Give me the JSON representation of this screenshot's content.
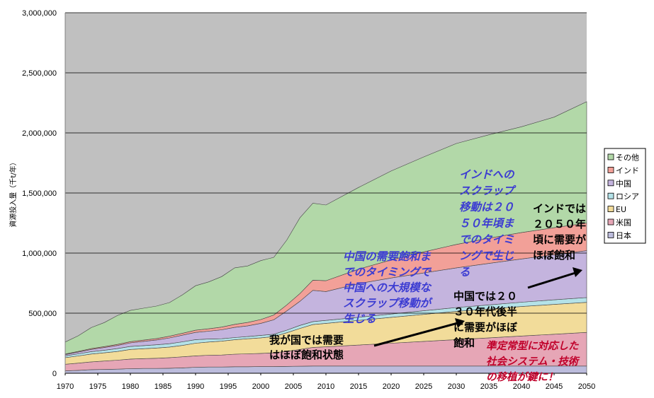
{
  "chart_data": {
    "type": "area",
    "stacked": true,
    "ylabel": "資源投入量（千t/年）",
    "ylim": [
      0,
      3000000
    ],
    "yticks": [
      "0",
      "500,000",
      "1,000,000",
      "1,500,000",
      "2,000,000",
      "2,500,000",
      "3,000,000"
    ],
    "xticks": [
      "1970",
      "1975",
      "1980",
      "1985",
      "1990",
      "1995",
      "2000",
      "2005",
      "2010",
      "2015",
      "2020",
      "2025",
      "2030",
      "2035",
      "2040",
      "2045",
      "2050"
    ],
    "grid": true,
    "legend_position": "right",
    "x": [
      1970,
      1972,
      1974,
      1976,
      1978,
      1980,
      1982,
      1984,
      1986,
      1988,
      1990,
      1992,
      1994,
      1996,
      1998,
      2000,
      2002,
      2004,
      2006,
      2008,
      2010,
      2015,
      2020,
      2025,
      2030,
      2035,
      2040,
      2045,
      2050
    ],
    "series": [
      {
        "name": "日本",
        "color": "#bcbcdc",
        "values": [
          20000,
          24000,
          30000,
          32000,
          34000,
          38000,
          40000,
          40000,
          42000,
          45000,
          50000,
          52000,
          52000,
          54000,
          54000,
          55000,
          55000,
          57000,
          58000,
          60000,
          60000,
          60000,
          60000,
          60000,
          60000,
          60000,
          60000,
          60000,
          60000
        ]
      },
      {
        "name": "米国",
        "color": "#e6a6b6",
        "values": [
          55000,
          60000,
          65000,
          70000,
          75000,
          80000,
          82000,
          85000,
          88000,
          92000,
          95000,
          98000,
          100000,
          105000,
          108000,
          110000,
          115000,
          125000,
          140000,
          155000,
          160000,
          175000,
          190000,
          205000,
          220000,
          235000,
          250000,
          265000,
          280000
        ]
      },
      {
        "name": "EU",
        "color": "#f2dc9a",
        "values": [
          55000,
          60000,
          65000,
          68000,
          72000,
          80000,
          82000,
          85000,
          88000,
          95000,
          105000,
          110000,
          115000,
          120000,
          125000,
          130000,
          135000,
          155000,
          175000,
          190000,
          195000,
          205000,
          215000,
          225000,
          235000,
          240000,
          245000,
          248000,
          250000
        ]
      },
      {
        "name": "ロシア",
        "color": "#b4e2e8",
        "values": [
          15000,
          18000,
          20000,
          22000,
          24000,
          25000,
          26000,
          27000,
          28000,
          30000,
          30000,
          25000,
          20000,
          18000,
          18000,
          20000,
          20000,
          22000,
          25000,
          25000,
          25000,
          26000,
          28000,
          30000,
          32000,
          34000,
          36000,
          38000,
          40000
        ]
      },
      {
        "name": "中国",
        "color": "#c4b4de",
        "values": [
          10000,
          14000,
          18000,
          22000,
          26000,
          30000,
          35000,
          40000,
          48000,
          55000,
          60000,
          65000,
          75000,
          85000,
          90000,
          100000,
          120000,
          160000,
          200000,
          260000,
          240000,
          280000,
          300000,
          315000,
          330000,
          345000,
          360000,
          375000,
          390000
        ]
      },
      {
        "name": "インド",
        "color": "#f2a098",
        "values": [
          5000,
          6000,
          7000,
          8000,
          9000,
          10000,
          11000,
          12000,
          14000,
          16000,
          18000,
          20000,
          22000,
          25000,
          28000,
          32000,
          40000,
          50000,
          65000,
          85000,
          90000,
          120000,
          150000,
          175000,
          195000,
          210000,
          220000,
          225000,
          230000
        ]
      },
      {
        "name": "その他",
        "color": "#b2d8a8",
        "values": [
          100000,
          130000,
          175000,
          200000,
          240000,
          260000,
          265000,
          270000,
          280000,
          320000,
          370000,
          390000,
          420000,
          470000,
          470000,
          490000,
          480000,
          540000,
          630000,
          640000,
          630000,
          680000,
          740000,
          790000,
          840000,
          860000,
          880000,
          920000,
          1010000
        ]
      }
    ]
  },
  "annotations": {
    "india_shift": [
      "インドへの",
      "スクラップ",
      "移動は２０",
      "５０年頃ま",
      "でのタイミ",
      "ングで生じ",
      "る"
    ],
    "china_shift": [
      "中国の需要飽和ま",
      "でのタイミングで",
      "中国への大規模な",
      "スクラップ移動が",
      "生じる"
    ],
    "india_saturation": [
      "インドでは",
      "２０５０年",
      "頃に需要が",
      "ほぼ飽和"
    ],
    "china_saturation": [
      "中国では２０",
      "３０年代後半",
      "に需要がほぼ",
      "飽和"
    ],
    "japan_saturation": [
      "我が国では需要",
      "はほぼ飽和状態"
    ],
    "system_shift": [
      "準定常型に対応した",
      "社会システム・技術",
      "の移植が鍵に！"
    ]
  }
}
